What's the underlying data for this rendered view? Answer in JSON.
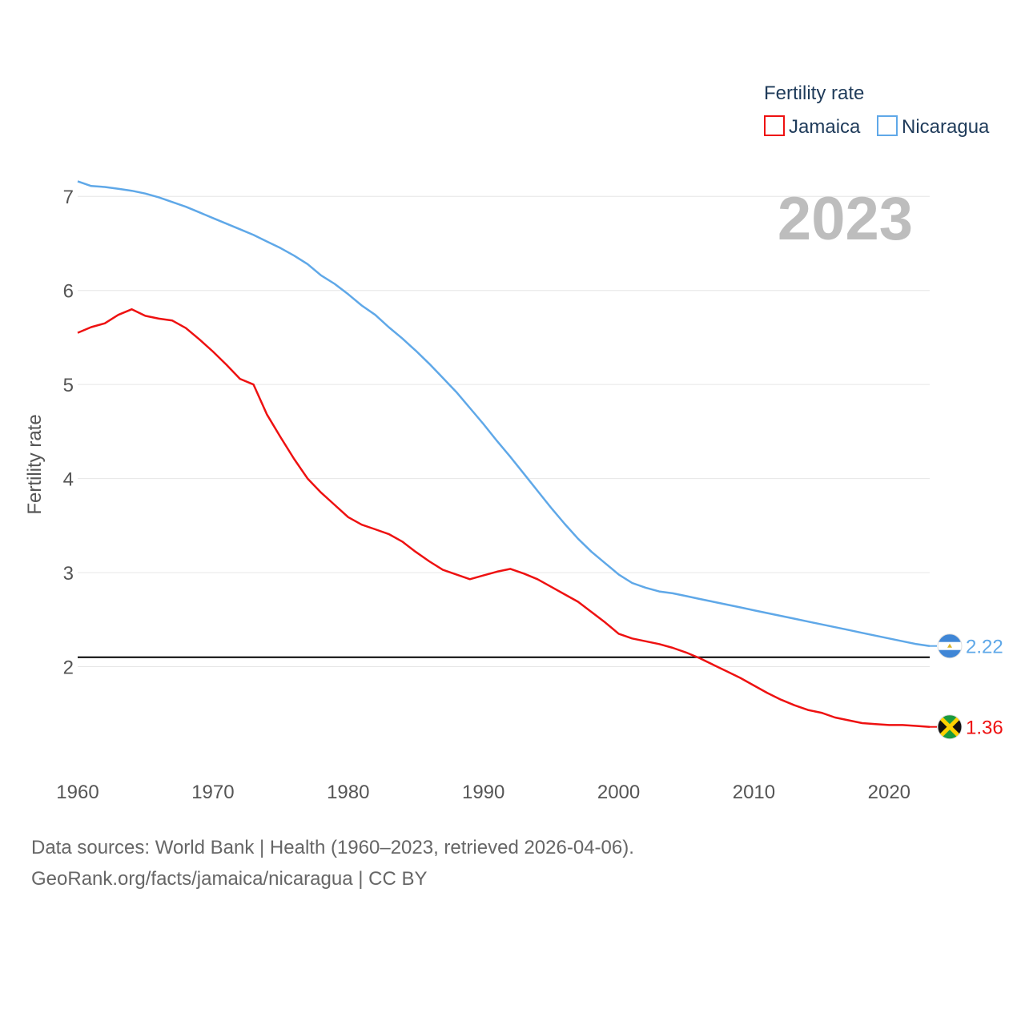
{
  "chart_data": {
    "type": "line",
    "ylabel": "Fertility rate",
    "legend_title": "Fertility rate",
    "legend_position": "top-right",
    "year_label": "2023",
    "xlim": [
      1960,
      2023
    ],
    "ylim": [
      1.0,
      7.3
    ],
    "x_ticks": [
      1960,
      1970,
      1980,
      1990,
      2000,
      2010,
      2020
    ],
    "y_ticks": [
      2,
      3,
      4,
      5,
      6,
      7
    ],
    "reference_line": {
      "value": 2.1,
      "color": "#000000"
    },
    "x": [
      1960,
      1961,
      1962,
      1963,
      1964,
      1965,
      1966,
      1967,
      1968,
      1969,
      1970,
      1971,
      1972,
      1973,
      1974,
      1975,
      1976,
      1977,
      1978,
      1979,
      1980,
      1981,
      1982,
      1983,
      1984,
      1985,
      1986,
      1987,
      1988,
      1989,
      1990,
      1991,
      1992,
      1993,
      1994,
      1995,
      1996,
      1997,
      1998,
      1999,
      2000,
      2001,
      2002,
      2003,
      2004,
      2005,
      2006,
      2007,
      2008,
      2009,
      2010,
      2011,
      2012,
      2013,
      2014,
      2015,
      2016,
      2017,
      2018,
      2019,
      2020,
      2021,
      2022,
      2023
    ],
    "series": [
      {
        "name": "Jamaica",
        "color": "#ee1111",
        "end_label": "1.36",
        "flag_icon": "jamaica-flag-icon",
        "values": [
          5.55,
          5.61,
          5.65,
          5.74,
          5.8,
          5.73,
          5.7,
          5.68,
          5.6,
          5.48,
          5.35,
          5.21,
          5.06,
          5.0,
          4.68,
          4.44,
          4.21,
          4.0,
          3.85,
          3.72,
          3.59,
          3.51,
          3.46,
          3.41,
          3.33,
          3.22,
          3.12,
          3.03,
          2.98,
          2.93,
          2.97,
          3.01,
          3.04,
          2.99,
          2.93,
          2.85,
          2.77,
          2.69,
          2.58,
          2.47,
          2.35,
          2.3,
          2.27,
          2.24,
          2.2,
          2.15,
          2.09,
          2.02,
          1.95,
          1.88,
          1.8,
          1.72,
          1.65,
          1.59,
          1.54,
          1.51,
          1.46,
          1.43,
          1.4,
          1.39,
          1.38,
          1.38,
          1.37,
          1.36
        ]
      },
      {
        "name": "Nicaragua",
        "color": "#5fa8e8",
        "end_label": "2.22",
        "flag_icon": "nicaragua-flag-icon",
        "values": [
          7.16,
          7.11,
          7.1,
          7.08,
          7.06,
          7.03,
          6.99,
          6.94,
          6.89,
          6.83,
          6.77,
          6.71,
          6.65,
          6.59,
          6.52,
          6.45,
          6.37,
          6.28,
          6.16,
          6.07,
          5.96,
          5.84,
          5.74,
          5.61,
          5.49,
          5.36,
          5.22,
          5.07,
          4.92,
          4.75,
          4.58,
          4.4,
          4.23,
          4.05,
          3.87,
          3.69,
          3.52,
          3.36,
          3.22,
          3.1,
          2.98,
          2.89,
          2.84,
          2.8,
          2.78,
          2.75,
          2.72,
          2.69,
          2.66,
          2.63,
          2.6,
          2.57,
          2.54,
          2.51,
          2.48,
          2.45,
          2.42,
          2.39,
          2.36,
          2.33,
          2.3,
          2.27,
          2.24,
          2.22
        ]
      }
    ]
  },
  "footer": {
    "source": "Data sources: World Bank | Health (1960–2023, retrieved 2026-04-06).",
    "credit": "GeoRank.org/facts/jamaica/nicaragua | CC BY"
  }
}
